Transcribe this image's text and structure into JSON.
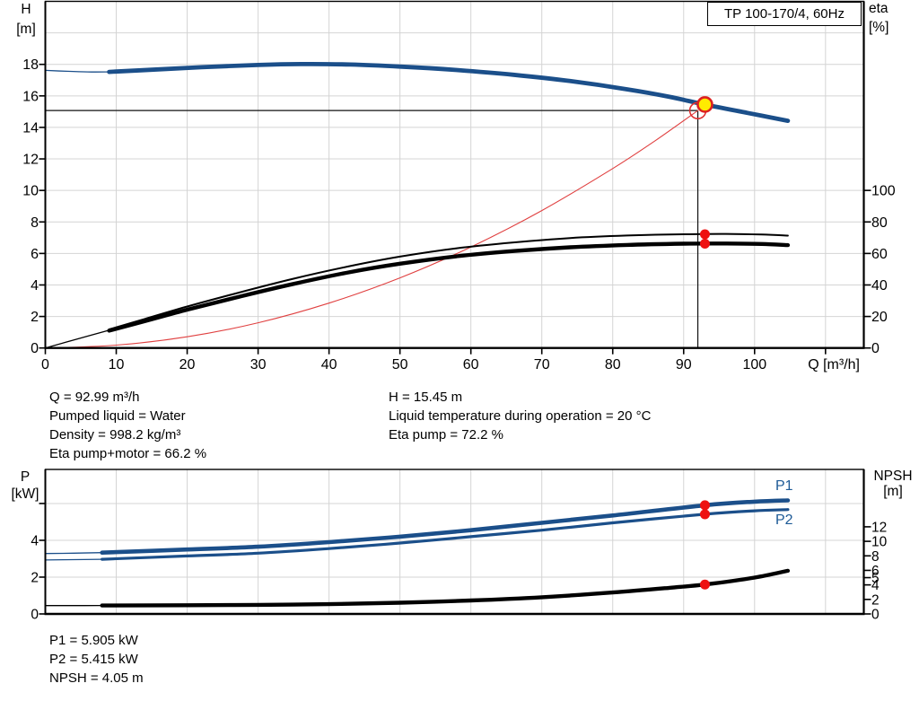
{
  "title_box": {
    "label": "TP 100-170/4, 60Hz"
  },
  "colors": {
    "blue": "#1b4f8a",
    "black": "#000000",
    "red": "#e04040",
    "marker_red": "#ee1111",
    "marker_yellow": "#ffeb00",
    "grid": "#d4d4d4",
    "axis": "#000000",
    "label_blue": "#1d5a96"
  },
  "info_top_left": {
    "lines": [
      "Q = 92.99 m³/h",
      "Pumped liquid = Water",
      "Density = 998.2 kg/m³",
      "Eta pump+motor = 66.2 %"
    ]
  },
  "info_top_right": {
    "lines": [
      "H = 15.45 m",
      "Liquid temperature during operation = 20 °C",
      "Eta pump = 72.2 %"
    ]
  },
  "info_bottom": {
    "lines": [
      "P1 = 5.905 kW",
      "P2 = 5.415 kW",
      "NPSH = 4.05 m"
    ]
  },
  "chart_data": [
    {
      "type": "line",
      "title": "TP 100-170/4, 60Hz",
      "x_axis": {
        "label": "Q [m³/h]",
        "min": 0,
        "max": 115.4,
        "grid": [
          10,
          20,
          30,
          40,
          50,
          60,
          70,
          80,
          90,
          100,
          110
        ],
        "ticks": [
          [
            0,
            "0"
          ],
          [
            10,
            "10"
          ],
          [
            20,
            "20"
          ],
          [
            30,
            "30"
          ],
          [
            40,
            "40"
          ],
          [
            50,
            "50"
          ],
          [
            60,
            "60"
          ],
          [
            70,
            "70"
          ],
          [
            80,
            "80"
          ],
          [
            90,
            "90"
          ],
          [
            100,
            "100"
          ],
          [
            110,
            ""
          ]
        ]
      },
      "y_left": {
        "label": [
          "H",
          "[m]"
        ],
        "min": 0,
        "max": 22,
        "grid": [
          2,
          4,
          6,
          8,
          10,
          12,
          14,
          16,
          18,
          20
        ],
        "ticks": [
          [
            0,
            "0"
          ],
          [
            2,
            "2"
          ],
          [
            4,
            "4"
          ],
          [
            6,
            "6"
          ],
          [
            8,
            "8"
          ],
          [
            10,
            "10"
          ],
          [
            12,
            "12"
          ],
          [
            14,
            "14"
          ],
          [
            16,
            "16"
          ],
          [
            18,
            "18"
          ]
        ]
      },
      "y_right": {
        "label": [
          "eta",
          "[%]"
        ],
        "min": 0,
        "max": 220,
        "grid": [],
        "ticks": [
          [
            0,
            "0"
          ],
          [
            20,
            "20"
          ],
          [
            40,
            "40"
          ],
          [
            60,
            "60"
          ],
          [
            80,
            "80"
          ],
          [
            100,
            "100"
          ]
        ]
      },
      "crosshair": {
        "h_value": 15.07,
        "h_q0": 0,
        "h_q1": 92,
        "v_q": 92,
        "v_v0": 0,
        "v_v1": 15.07
      },
      "series": [
        {
          "name": "system-curve",
          "axis": "right_is_left_scale_no",
          "yaxis": "left",
          "color": "red",
          "width": 1.1,
          "points": [
            [
              0,
              0
            ],
            [
              10,
              0.18
            ],
            [
              20,
              0.71
            ],
            [
              30,
              1.6
            ],
            [
              40,
              2.85
            ],
            [
              50,
              4.45
            ],
            [
              60,
              6.41
            ],
            [
              70,
              8.72
            ],
            [
              80,
              11.39
            ],
            [
              86,
              13.16
            ],
            [
              92,
              15.07
            ]
          ]
        },
        {
          "name": "eta-lead",
          "yaxis": "right",
          "color": "black",
          "width": 1.3,
          "points": [
            [
              0,
              0
            ],
            [
              5,
              6.3
            ],
            [
              9,
              11.3
            ]
          ]
        },
        {
          "name": "eta-pump",
          "yaxis": "right",
          "color": "black",
          "width": 2,
          "points": [
            [
              9,
              11.8
            ],
            [
              14,
              18.4
            ],
            [
              20,
              26.3
            ],
            [
              27,
              34.8
            ],
            [
              35,
              44
            ],
            [
              43,
              52
            ],
            [
              50,
              58
            ],
            [
              58,
              63.3
            ],
            [
              66,
              67
            ],
            [
              74,
              69.8
            ],
            [
              82,
              71.4
            ],
            [
              90,
              72.2
            ],
            [
              96,
              72.4
            ],
            [
              101,
              72
            ],
            [
              104.7,
              71.3
            ]
          ]
        },
        {
          "name": "eta-pump-motor",
          "yaxis": "right",
          "color": "black",
          "width": 4.4,
          "points": [
            [
              9,
              11
            ],
            [
              14,
              17
            ],
            [
              20,
              24.3
            ],
            [
              27,
              32.2
            ],
            [
              35,
              40.7
            ],
            [
              43,
              48.2
            ],
            [
              50,
              53.5
            ],
            [
              58,
              58.2
            ],
            [
              66,
              61.5
            ],
            [
              74,
              63.9
            ],
            [
              82,
              65.4
            ],
            [
              90,
              66.2
            ],
            [
              96,
              66.3
            ],
            [
              101,
              66
            ],
            [
              104.7,
              65.3
            ]
          ]
        },
        {
          "name": "head-lead",
          "yaxis": "left",
          "color": "blue",
          "width": 1.3,
          "points": [
            [
              0,
              17.62
            ],
            [
              3,
              17.56
            ],
            [
              6,
              17.52
            ],
            [
              9,
              17.52
            ]
          ]
        },
        {
          "name": "head",
          "yaxis": "left",
          "color": "blue",
          "width": 4.8,
          "points": [
            [
              9,
              17.52
            ],
            [
              15,
              17.66
            ],
            [
              22,
              17.82
            ],
            [
              30,
              17.96
            ],
            [
              36,
              18.02
            ],
            [
              43,
              17.99
            ],
            [
              50,
              17.86
            ],
            [
              58,
              17.64
            ],
            [
              66,
              17.34
            ],
            [
              74,
              16.94
            ],
            [
              82,
              16.42
            ],
            [
              88,
              15.94
            ],
            [
              93,
              15.45
            ],
            [
              99,
              14.92
            ],
            [
              104.7,
              14.42
            ]
          ]
        }
      ],
      "markers": [
        {
          "type": "circle-open",
          "q": 92,
          "v": 15.07,
          "yaxis": "left",
          "r": 9
        },
        {
          "type": "circle-yellow",
          "q": 93,
          "v": 15.45,
          "yaxis": "left",
          "r": 8
        },
        {
          "type": "dot",
          "q": 93,
          "v": 72.2,
          "yaxis": "right",
          "r": 5.5
        },
        {
          "type": "dot",
          "q": 93,
          "v": 66.2,
          "yaxis": "right",
          "r": 5.5
        }
      ],
      "annotations": []
    },
    {
      "type": "line",
      "x_axis": {
        "label": "",
        "min": 0,
        "max": 115.4,
        "grid": [
          10,
          20,
          30,
          40,
          50,
          60,
          70,
          80,
          90,
          100,
          110
        ],
        "ticks": []
      },
      "y_left": {
        "label": [
          "P",
          "[kW]"
        ],
        "min": 0,
        "max": 7.85,
        "grid": [
          2,
          4,
          6
        ],
        "ticks": [
          [
            0,
            "0"
          ],
          [
            2,
            "2"
          ],
          [
            4,
            "4"
          ],
          [
            6,
            ""
          ]
        ]
      },
      "y_right": {
        "label": [
          "NPSH",
          "[m]"
        ],
        "min": 0,
        "max": 19.9,
        "grid": [],
        "ticks": [
          [
            0,
            "0"
          ],
          [
            2,
            "2"
          ],
          [
            4,
            "4"
          ],
          [
            5,
            "5"
          ],
          [
            6,
            "6"
          ],
          [
            8,
            "8"
          ],
          [
            10,
            "10"
          ],
          [
            12,
            "12"
          ]
        ]
      },
      "crosshair": null,
      "series": [
        {
          "name": "p1-lead",
          "yaxis": "left",
          "color": "blue",
          "width": 1.3,
          "points": [
            [
              0,
              3.28
            ],
            [
              4,
              3.3
            ],
            [
              8,
              3.33
            ]
          ]
        },
        {
          "name": "p1",
          "yaxis": "left",
          "color": "blue",
          "width": 4.6,
          "points": [
            [
              8,
              3.33
            ],
            [
              20,
              3.5
            ],
            [
              30,
              3.65
            ],
            [
              40,
              3.9
            ],
            [
              50,
              4.2
            ],
            [
              60,
              4.55
            ],
            [
              70,
              4.95
            ],
            [
              80,
              5.35
            ],
            [
              93,
              5.905
            ],
            [
              100,
              6.1
            ],
            [
              104.7,
              6.17
            ]
          ]
        },
        {
          "name": "p2-lead",
          "yaxis": "left",
          "color": "blue",
          "width": 1.3,
          "points": [
            [
              0,
              2.93
            ],
            [
              4,
              2.95
            ],
            [
              8,
              2.97
            ]
          ]
        },
        {
          "name": "p2",
          "yaxis": "left",
          "color": "blue",
          "width": 3.2,
          "points": [
            [
              8,
              2.97
            ],
            [
              20,
              3.15
            ],
            [
              30,
              3.3
            ],
            [
              40,
              3.55
            ],
            [
              50,
              3.85
            ],
            [
              60,
              4.2
            ],
            [
              70,
              4.55
            ],
            [
              80,
              4.95
            ],
            [
              93,
              5.415
            ],
            [
              100,
              5.6
            ],
            [
              104.7,
              5.67
            ]
          ]
        },
        {
          "name": "npsh-lead",
          "yaxis": "right",
          "color": "black",
          "width": 1.3,
          "points": [
            [
              0,
              1.15
            ],
            [
              4,
              1.15
            ],
            [
              8,
              1.16
            ]
          ]
        },
        {
          "name": "npsh",
          "yaxis": "right",
          "color": "black",
          "width": 4.4,
          "points": [
            [
              8,
              1.16
            ],
            [
              20,
              1.2
            ],
            [
              30,
              1.25
            ],
            [
              40,
              1.35
            ],
            [
              50,
              1.55
            ],
            [
              60,
              1.85
            ],
            [
              70,
              2.3
            ],
            [
              80,
              2.95
            ],
            [
              88,
              3.6
            ],
            [
              93,
              4.05
            ],
            [
              100,
              5.0
            ],
            [
              104.7,
              5.95
            ]
          ]
        }
      ],
      "markers": [
        {
          "type": "dot",
          "q": 93,
          "v": 5.905,
          "yaxis": "left",
          "r": 5.5
        },
        {
          "type": "dot",
          "q": 93,
          "v": 5.415,
          "yaxis": "left",
          "r": 5.5
        },
        {
          "type": "dot",
          "q": 93,
          "v": 4.05,
          "yaxis": "right",
          "r": 5.5
        }
      ],
      "annotations": [
        {
          "text": "P1",
          "x": 864,
          "y": 28
        },
        {
          "text": "P2",
          "x": 864,
          "y": 66
        }
      ]
    }
  ]
}
